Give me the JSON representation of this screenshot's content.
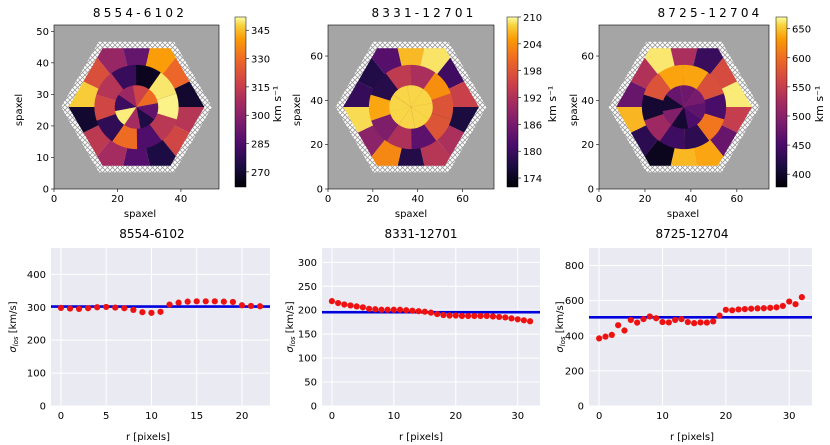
{
  "chart_data": [
    {
      "type": "heatmap",
      "title": "8554-6102",
      "xlabel": "spaxel",
      "ylabel": "spaxel",
      "xlim": [
        0,
        52
      ],
      "ylim": [
        0,
        52
      ],
      "xticks": [
        0,
        20,
        40
      ],
      "yticks": [
        0,
        10,
        20,
        30,
        40,
        50
      ],
      "colorbar": {
        "label": "km s⁻¹",
        "range": [
          262,
          352
        ],
        "ticks": [
          270,
          285,
          300,
          315,
          330,
          345
        ]
      }
    },
    {
      "type": "heatmap",
      "title": "8331-12701",
      "xlabel": "spaxel",
      "ylabel": "spaxel",
      "xlim": [
        0,
        74
      ],
      "ylim": [
        0,
        74
      ],
      "xticks": [
        0,
        20,
        40,
        60
      ],
      "yticks": [
        0,
        20,
        40,
        60
      ],
      "colorbar": {
        "label": "km s⁻¹",
        "range": [
          172,
          210
        ],
        "ticks": [
          174,
          180,
          186,
          192,
          198,
          204,
          210
        ]
      }
    },
    {
      "type": "heatmap",
      "title": "8725-12704",
      "xlabel": "spaxel",
      "ylabel": "spaxel",
      "xlim": [
        0,
        74
      ],
      "ylim": [
        0,
        74
      ],
      "xticks": [
        0,
        20,
        40,
        60
      ],
      "yticks": [
        0,
        20,
        40,
        60
      ],
      "colorbar": {
        "label": "km s⁻¹",
        "range": [
          378,
          670
        ],
        "ticks": [
          400,
          450,
          500,
          550,
          600,
          650
        ]
      }
    },
    {
      "type": "scatter",
      "title": "8554-6102",
      "xlabel": "r [pixels]",
      "ylabel": "σlos [km/s]",
      "xlim": [
        -1.1,
        23.1
      ],
      "ylim": [
        0,
        480
      ],
      "xticks": [
        0,
        5,
        10,
        15,
        20
      ],
      "yticks": [
        0,
        100,
        200,
        300,
        400
      ],
      "x": [
        0,
        1,
        2,
        3,
        4,
        5,
        6,
        7,
        8,
        9,
        10,
        11,
        12,
        13,
        14,
        15,
        16,
        17,
        18,
        19,
        20,
        21,
        22
      ],
      "y": [
        298,
        296,
        295,
        297,
        300,
        301,
        299,
        297,
        292,
        285,
        283,
        286,
        308,
        314,
        317,
        318,
        318,
        318,
        317,
        316,
        306,
        304,
        303
      ],
      "hline": 302
    },
    {
      "type": "scatter",
      "title": "8331-12701",
      "xlabel": "r [pixels]",
      "ylabel": "σlos [km/s]",
      "xlim": [
        -1.6,
        33.6
      ],
      "ylim": [
        0,
        330
      ],
      "xticks": [
        0,
        10,
        20,
        30
      ],
      "yticks": [
        0,
        50,
        100,
        150,
        200,
        250,
        300
      ],
      "x": [
        0,
        1,
        2,
        3,
        4,
        5,
        6,
        7,
        8,
        9,
        10,
        11,
        12,
        13,
        14,
        15,
        16,
        17,
        18,
        19,
        20,
        21,
        22,
        23,
        24,
        25,
        26,
        27,
        28,
        29,
        30,
        31,
        32
      ],
      "y": [
        219,
        215,
        212,
        210,
        208,
        206,
        203,
        202,
        201,
        201,
        201,
        201,
        200,
        199,
        198,
        197,
        195,
        192,
        190,
        189,
        189,
        188,
        188,
        188,
        188,
        188,
        187,
        186,
        185,
        183,
        181,
        179,
        177
      ],
      "hline": 196
    },
    {
      "type": "scatter",
      "title": "8725-12704",
      "xlabel": "r [pixels]",
      "ylabel": "σlos [km/s]",
      "xlim": [
        -1.6,
        33.6
      ],
      "ylim": [
        0,
        900
      ],
      "xticks": [
        0,
        10,
        20,
        30
      ],
      "yticks": [
        0,
        200,
        400,
        600,
        800
      ],
      "x": [
        0,
        1,
        2,
        3,
        4,
        5,
        6,
        7,
        8,
        9,
        10,
        11,
        12,
        13,
        14,
        15,
        16,
        17,
        18,
        19,
        20,
        21,
        22,
        23,
        24,
        25,
        26,
        27,
        28,
        29,
        30,
        31,
        32
      ],
      "y": [
        385,
        395,
        405,
        460,
        430,
        490,
        475,
        495,
        510,
        500,
        478,
        476,
        490,
        495,
        478,
        472,
        476,
        475,
        482,
        515,
        548,
        545,
        550,
        552,
        554,
        556,
        557,
        559,
        562,
        570,
        595,
        580,
        620
      ],
      "hline": 505
    }
  ]
}
